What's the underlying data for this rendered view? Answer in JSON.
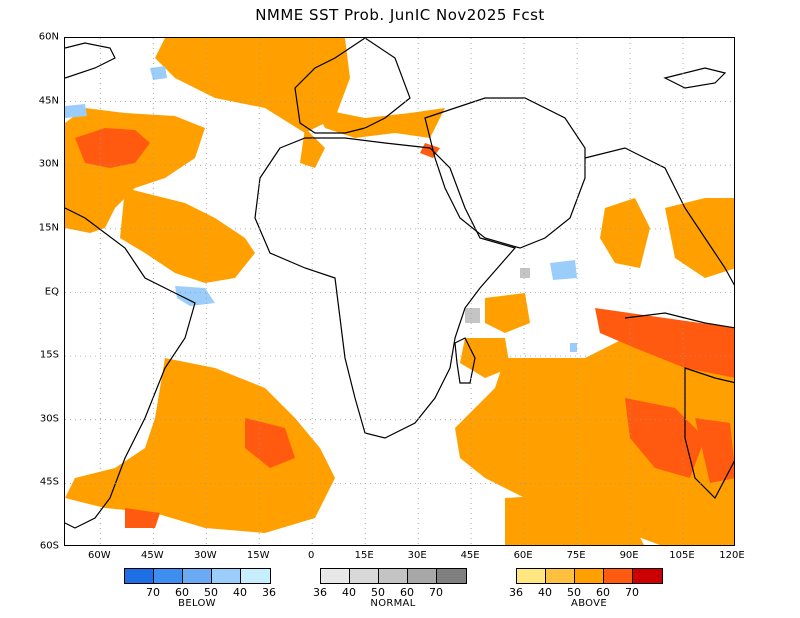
{
  "title": "NMME  SST  Prob.  JunIC   Nov2025  Fcst",
  "map": {
    "lat_labels": [
      "60N",
      "45N",
      "30N",
      "15N",
      "EQ",
      "15S",
      "30S",
      "45S",
      "60S"
    ],
    "lon_labels": [
      "60W",
      "45W",
      "30W",
      "15W",
      "0",
      "15E",
      "30E",
      "45E",
      "60E",
      "75E",
      "90E",
      "105E",
      "120E"
    ],
    "lat_range": [
      -60,
      60
    ],
    "lon_range": [
      -70,
      120
    ],
    "gridlines": "dotted every 15 degrees"
  },
  "legend": {
    "below": {
      "title": "BELOW",
      "ticks": [
        "70",
        "60",
        "50",
        "40",
        "36"
      ],
      "colors": [
        "#1e6fe6",
        "#3c8ef0",
        "#6aaaf5",
        "#9acdfa",
        "#c6eefc"
      ]
    },
    "normal": {
      "title": "NORMAL",
      "ticks": [
        "36",
        "40",
        "50",
        "60",
        "70"
      ],
      "colors": [
        "#e8e8e8",
        "#d8d8d8",
        "#c4c4c4",
        "#a8a8a8",
        "#808080"
      ]
    },
    "above": {
      "title": "ABOVE",
      "ticks": [
        "36",
        "40",
        "50",
        "60",
        "70"
      ],
      "colors": [
        "#ffe680",
        "#ffc040",
        "#ffa000",
        "#ff5a10",
        "#cc0000"
      ]
    }
  }
}
